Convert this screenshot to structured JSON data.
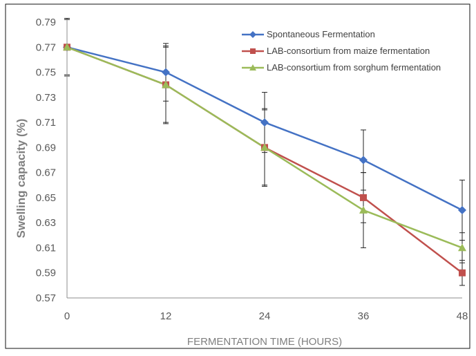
{
  "chart_data": {
    "type": "line",
    "title": "",
    "xlabel": "FERMENTATION TIME (HOURS)",
    "ylabel": "Swelling capacity (%)",
    "x": [
      0,
      12,
      24,
      36,
      48
    ],
    "x_tick_labels": [
      "0",
      "12",
      "24",
      "36",
      "48"
    ],
    "y_tick_labels": [
      "0.57",
      "0.59",
      "0.61",
      "0.63",
      "0.65",
      "0.67",
      "0.69",
      "0.71",
      "0.73",
      "0.75",
      "0.77",
      "0.79"
    ],
    "ylim": [
      0.57,
      0.79
    ],
    "xlim": [
      0,
      48
    ],
    "grid": false,
    "legend_position": "top-right",
    "series": [
      {
        "name": "Spontaneous Fermentation",
        "color": "#4472c4",
        "marker": "diamond",
        "values": [
          0.77,
          0.75,
          0.71,
          0.68,
          0.64
        ],
        "error": [
          0.023,
          0.023,
          0.024,
          0.024,
          0.024
        ]
      },
      {
        "name": "LAB-consortium from maize fermentation",
        "color": "#c0504d",
        "marker": "square",
        "values": [
          0.77,
          0.74,
          0.69,
          0.65,
          0.59
        ],
        "error": [
          0.023,
          0.03,
          0.03,
          0.02,
          0.01
        ]
      },
      {
        "name": "LAB-consortium from sorghum fermentation",
        "color": "#9bbb59",
        "marker": "triangle",
        "values": [
          0.77,
          0.74,
          0.69,
          0.64,
          0.61
        ],
        "error": [
          0.022,
          0.031,
          0.031,
          0.03,
          0.012
        ]
      }
    ]
  }
}
